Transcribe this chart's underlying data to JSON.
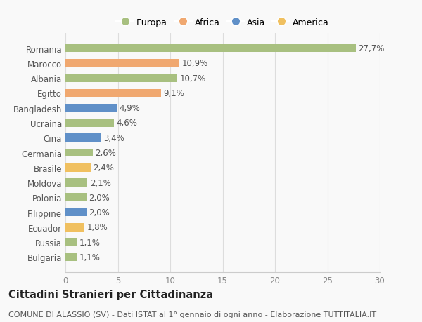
{
  "categories": [
    "Bulgaria",
    "Russia",
    "Ecuador",
    "Filippine",
    "Polonia",
    "Moldova",
    "Brasile",
    "Germania",
    "Cina",
    "Ucraina",
    "Bangladesh",
    "Egitto",
    "Albania",
    "Marocco",
    "Romania"
  ],
  "values": [
    1.1,
    1.1,
    1.8,
    2.0,
    2.0,
    2.1,
    2.4,
    2.6,
    3.4,
    4.6,
    4.9,
    9.1,
    10.7,
    10.9,
    27.7
  ],
  "labels": [
    "1,1%",
    "1,1%",
    "1,8%",
    "2,0%",
    "2,0%",
    "2,1%",
    "2,4%",
    "2,6%",
    "3,4%",
    "4,6%",
    "4,9%",
    "9,1%",
    "10,7%",
    "10,9%",
    "27,7%"
  ],
  "colors": [
    "#a8c080",
    "#a8c080",
    "#f0c060",
    "#6090c8",
    "#a8c080",
    "#a8c080",
    "#f0c060",
    "#a8c080",
    "#6090c8",
    "#a8c080",
    "#6090c8",
    "#f0a870",
    "#a8c080",
    "#f0a870",
    "#a8c080"
  ],
  "legend_labels": [
    "Europa",
    "Africa",
    "Asia",
    "America"
  ],
  "legend_colors": [
    "#a8c080",
    "#f0a870",
    "#6090c8",
    "#f0c060"
  ],
  "xlim": [
    0,
    30
  ],
  "xticks": [
    0,
    5,
    10,
    15,
    20,
    25,
    30
  ],
  "title": "Cittadini Stranieri per Cittadinanza",
  "subtitle": "COMUNE DI ALASSIO (SV) - Dati ISTAT al 1° gennaio di ogni anno - Elaborazione TUTTITALIA.IT",
  "background_color": "#f9f9f9",
  "bar_height": 0.55,
  "label_fontsize": 8.5,
  "tick_fontsize": 8.5,
  "title_fontsize": 10.5,
  "subtitle_fontsize": 8.0
}
